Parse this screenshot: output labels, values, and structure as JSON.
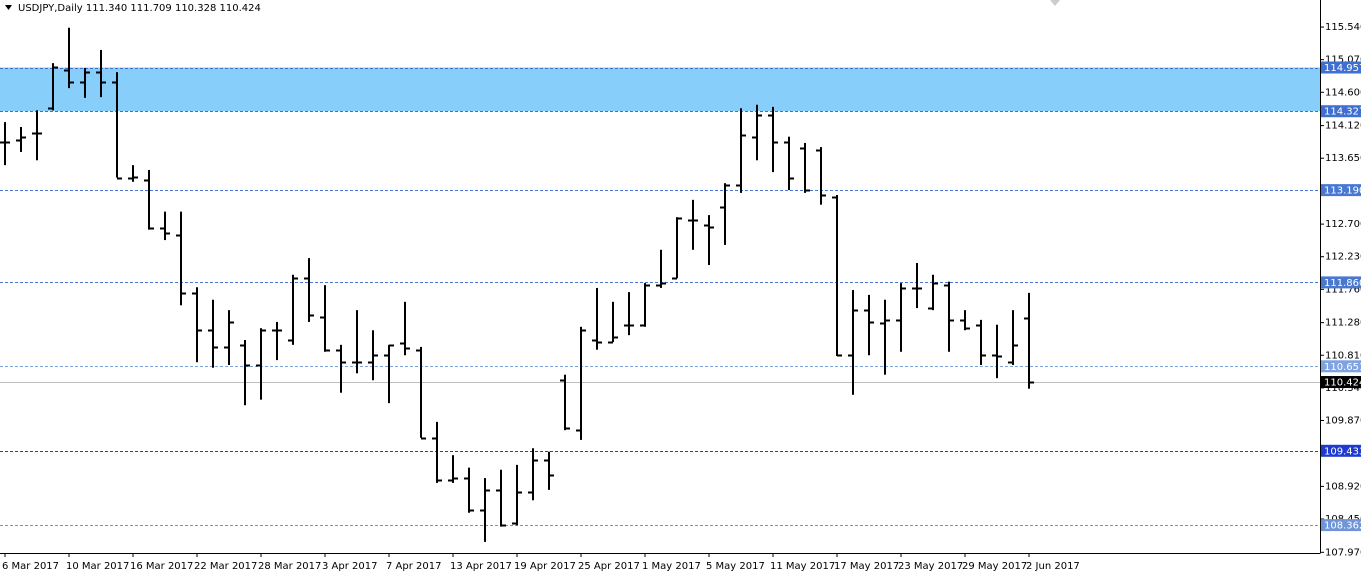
{
  "chart_data": {
    "type": "ohlc",
    "title": "USDJPY,Daily  111.340 111.709 110.328 110.424",
    "categories": [
      "6 Mar 2017",
      null,
      null,
      null,
      "10 Mar 2017",
      null,
      null,
      null,
      "16 Mar 2017",
      null,
      null,
      null,
      "22 Mar 2017",
      null,
      null,
      null,
      "28 Mar 2017",
      null,
      null,
      null,
      "3 Apr 2017",
      null,
      null,
      null,
      "7 Apr 2017",
      null,
      null,
      null,
      "13 Apr 2017",
      null,
      null,
      null,
      "19 Apr 2017",
      null,
      null,
      null,
      "25 Apr 2017",
      null,
      null,
      null,
      "1 May 2017",
      null,
      null,
      null,
      "5 May 2017",
      null,
      null,
      null,
      "11 May 2017",
      null,
      null,
      null,
      "17 May 2017",
      null,
      null,
      null,
      "23 May 2017",
      null,
      null,
      null,
      "29 May 2017",
      null,
      null,
      null,
      "2 Jun 2017"
    ],
    "open": [
      113.88,
      113.91,
      114.01,
      114.37,
      114.92,
      114.75,
      114.89,
      114.75,
      113.37,
      113.34,
      112.65,
      112.54,
      111.71,
      111.17,
      110.93,
      110.96,
      110.67,
      111.17,
      111.03,
      111.92,
      111.36,
      110.89,
      110.71,
      110.71,
      110.81,
      110.99,
      110.89,
      109.62,
      109.01,
      109.04,
      108.58,
      108.87,
      108.39,
      108.84,
      109.3,
      110.45,
      109.73,
      111.03,
      111.0,
      111.25,
      111.25,
      111.82,
      111.93,
      112.76,
      112.69,
      112.95,
      113.26,
      113.96,
      114.27,
      113.88,
      113.8,
      113.77,
      113.09,
      110.81,
      111.46,
      111.28,
      111.32,
      111.78,
      111.49,
      111.82,
      111.32,
      111.25,
      110.81,
      110.71,
      111.34
    ],
    "high": [
      114.17,
      114.1,
      114.34,
      115.02,
      115.53,
      114.95,
      115.21,
      114.89,
      113.55,
      113.48,
      112.88,
      112.88,
      111.79,
      111.61,
      111.46,
      111.03,
      111.2,
      111.29,
      111.97,
      112.21,
      111.82,
      110.96,
      111.46,
      111.17,
      110.96,
      111.58,
      110.93,
      109.85,
      109.37,
      109.19,
      109.04,
      109.16,
      109.23,
      109.47,
      109.42,
      110.53,
      111.22,
      111.78,
      111.58,
      111.72,
      111.85,
      112.33,
      112.8,
      113.05,
      112.83,
      113.29,
      114.37,
      114.42,
      114.39,
      113.96,
      113.87,
      113.81,
      113.12,
      111.75,
      111.68,
      111.61,
      111.85,
      112.14,
      111.97,
      111.87,
      111.46,
      111.32,
      111.25,
      111.46,
      111.709
    ],
    "low": [
      113.55,
      113.74,
      113.62,
      114.34,
      114.66,
      114.52,
      114.53,
      113.37,
      113.31,
      112.62,
      112.47,
      111.53,
      110.71,
      110.63,
      110.67,
      110.09,
      110.17,
      110.74,
      110.96,
      111.29,
      110.86,
      110.27,
      110.55,
      110.45,
      110.12,
      110.81,
      109.62,
      108.97,
      108.97,
      108.54,
      108.12,
      108.34,
      108.36,
      108.72,
      108.87,
      109.73,
      109.59,
      110.89,
      111.0,
      111.1,
      111.22,
      111.78,
      111.92,
      112.33,
      112.11,
      112.4,
      113.15,
      113.62,
      113.45,
      113.19,
      113.15,
      112.98,
      110.8,
      110.24,
      110.81,
      110.53,
      110.86,
      111.49,
      111.46,
      110.86,
      111.17,
      110.67,
      110.48,
      110.67,
      110.328
    ],
    "close": [
      113.88,
      113.96,
      114.01,
      114.96,
      114.75,
      114.89,
      114.75,
      113.37,
      113.38,
      112.65,
      112.57,
      111.71,
      111.17,
      110.93,
      111.29,
      110.67,
      111.17,
      111.17,
      111.92,
      111.39,
      110.89,
      110.71,
      110.71,
      110.81,
      110.96,
      110.91,
      109.62,
      109.01,
      109.04,
      108.58,
      108.87,
      108.36,
      108.84,
      109.3,
      109.09,
      109.76,
      111.17,
      111.0,
      111.07,
      111.25,
      111.82,
      111.85,
      112.79,
      112.76,
      112.66,
      113.26,
      113.98,
      114.27,
      113.88,
      113.37,
      113.19,
      113.12,
      110.81,
      111.46,
      111.29,
      111.32,
      111.78,
      111.78,
      111.85,
      111.32,
      111.2,
      110.81,
      110.8,
      110.96,
      110.424
    ],
    "color": "#000000",
    "ylim": [
      107.96,
      115.93
    ],
    "yticks": [
      {
        "value": 115.54,
        "label": "115.540"
      },
      {
        "value": 115.07,
        "label": "115.070"
      },
      {
        "value": 114.6,
        "label": "114.600"
      },
      {
        "value": 114.12,
        "label": "114.120"
      },
      {
        "value": 113.65,
        "label": "113.650"
      },
      {
        "value": 113.18,
        "label": "113.180"
      },
      {
        "value": 112.7,
        "label": "112.700"
      },
      {
        "value": 112.23,
        "label": "112.230"
      },
      {
        "value": 111.76,
        "label": "111.760"
      },
      {
        "value": 111.28,
        "label": "111.280"
      },
      {
        "value": 110.81,
        "label": "110.810"
      },
      {
        "value": 110.34,
        "label": "110.340"
      },
      {
        "value": 109.87,
        "label": "109.870"
      },
      {
        "value": 109.4,
        "label": "109.400"
      },
      {
        "value": 108.92,
        "label": "108.920"
      },
      {
        "value": 108.45,
        "label": "108.450"
      },
      {
        "value": 107.97,
        "label": "107.970"
      }
    ],
    "grid": false,
    "zone": [
      114.327,
      114.957
    ],
    "zone_color": "#87cefa",
    "levels": [
      {
        "value": 114.957,
        "color": "#3f6fd0"
      },
      {
        "value": 114.327,
        "color": "#3f6fd0"
      },
      {
        "value": 113.19,
        "label": "113.190",
        "color": "#4a78d0"
      },
      {
        "value": 111.86,
        "label": "111.860",
        "color": "#4a78d0"
      },
      {
        "value": 110.651,
        "color": "#7fa3e0"
      },
      {
        "value": 109.433,
        "color": "#1f3ad0"
      },
      {
        "value": 108.362,
        "color": "#6f94d8"
      }
    ],
    "current": {
      "value": 110.424,
      "color": "#000000",
      "line_color": "#c0c0c0"
    }
  }
}
